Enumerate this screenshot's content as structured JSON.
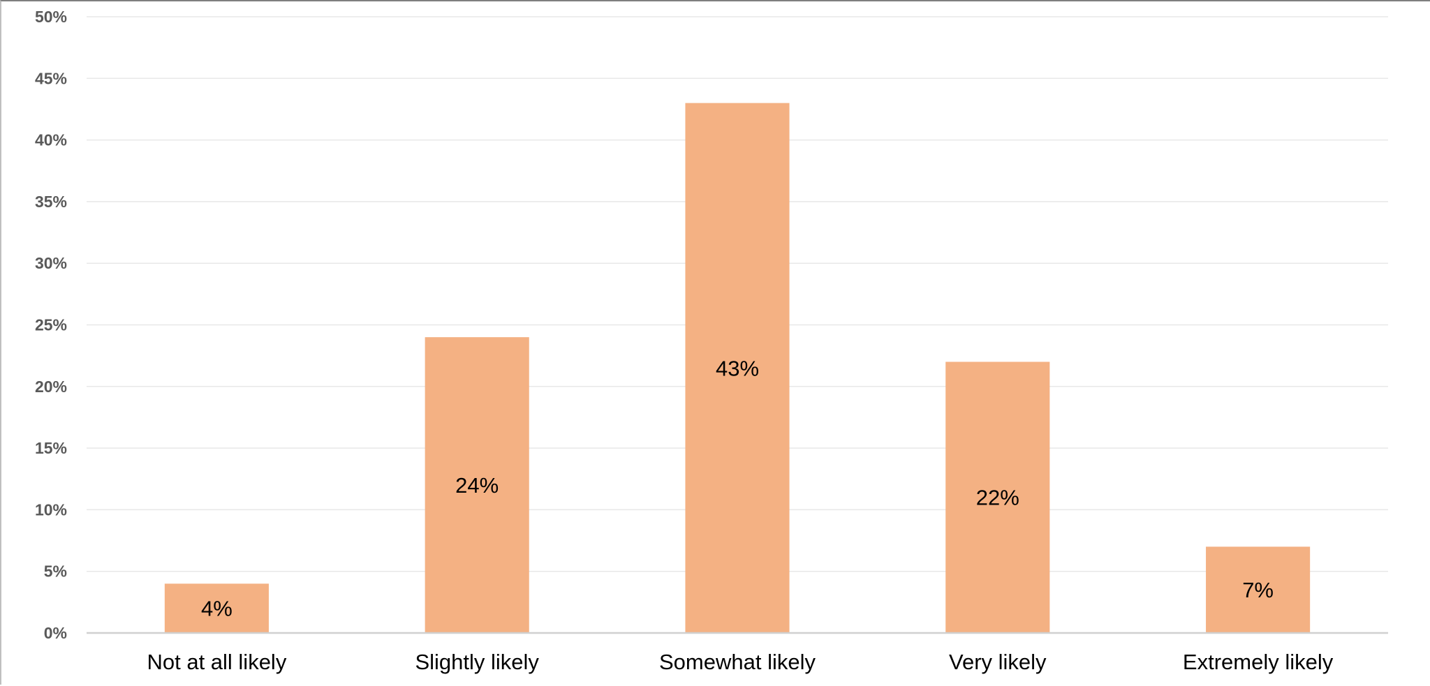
{
  "chart_data": {
    "type": "bar",
    "title": "",
    "xlabel": "",
    "ylabel": "",
    "categories": [
      "Not at all likely",
      "Slightly likely",
      "Somewhat likely",
      "Very likely",
      "Extremely likely"
    ],
    "values": [
      4,
      24,
      43,
      22,
      7
    ],
    "data_labels": [
      "4%",
      "24%",
      "43%",
      "22%",
      "7%"
    ],
    "ylim": [
      0,
      50
    ],
    "y_ticks": [
      "0%",
      "5%",
      "10%",
      "15%",
      "20%",
      "25%",
      "30%",
      "35%",
      "40%",
      "45%",
      "50%"
    ],
    "y_tick_values": [
      0,
      5,
      10,
      15,
      20,
      25,
      30,
      35,
      40,
      45,
      50
    ],
    "grid": true,
    "legend": "none",
    "colors": {
      "bar": "#f4b183",
      "grid": "#e8e8e8",
      "axis": "#d0d0d0",
      "tick_text": "#595959"
    }
  }
}
